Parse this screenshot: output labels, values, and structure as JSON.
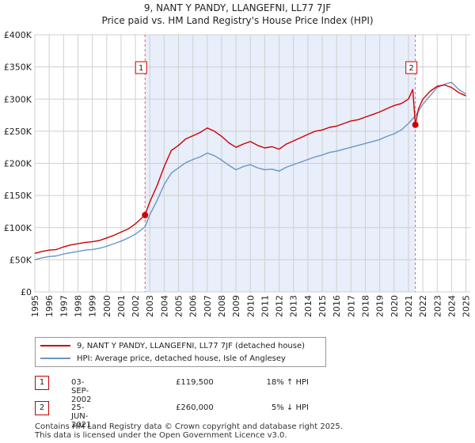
{
  "title": {
    "line1": "9, NANT Y PANDY, LLANGEFNI, LL77 7JF",
    "line2": "Price paid vs. HM Land Registry's House Price Index (HPI)"
  },
  "colors": {
    "property": "#cc0000",
    "hpi": "#6a96c8",
    "shade": "#e8eefa",
    "grid": "#cfcfcf",
    "vline": "#e06060"
  },
  "legend": {
    "property_label": "9, NANT Y PANDY, LLANGEFNI, LL77 7JF (detached house)",
    "hpi_label": "HPI: Average price, detached house, Isle of Anglesey"
  },
  "sales": [
    {
      "num": "1",
      "date": "03-SEP-2002",
      "price": "£119,500",
      "hpi": "18% ↑ HPI"
    },
    {
      "num": "2",
      "date": "25-JUN-2021",
      "price": "£260,000",
      "hpi": "5% ↓ HPI"
    }
  ],
  "footer": {
    "line1": "Contains HM Land Registry data © Crown copyright and database right 2025.",
    "line2": "This data is licensed under the Open Government Licence v3.0."
  },
  "chart_data": {
    "type": "line",
    "title": "9, NANT Y PANDY, LLANGEFNI, LL77 7JF",
    "xlabel": "",
    "ylabel": "",
    "xlim": [
      1995,
      2025.3
    ],
    "ylim": [
      0,
      400000
    ],
    "x_ticks": [
      1995,
      1996,
      1997,
      1998,
      1999,
      2000,
      2001,
      2002,
      2003,
      2004,
      2005,
      2006,
      2007,
      2008,
      2009,
      2010,
      2011,
      2012,
      2013,
      2014,
      2015,
      2016,
      2017,
      2018,
      2019,
      2020,
      2021,
      2022,
      2023,
      2024,
      2025
    ],
    "y_ticks": [
      {
        "value": 0,
        "label": "£0"
      },
      {
        "value": 50000,
        "label": "£50K"
      },
      {
        "value": 100000,
        "label": "£100K"
      },
      {
        "value": 150000,
        "label": "£150K"
      },
      {
        "value": 200000,
        "label": "£200K"
      },
      {
        "value": 250000,
        "label": "£250K"
      },
      {
        "value": 300000,
        "label": "£300K"
      },
      {
        "value": 350000,
        "label": "£350K"
      },
      {
        "value": 400000,
        "label": "£400K"
      }
    ],
    "grid": true,
    "shaded_ranges": [
      [
        2002.67,
        2021.48
      ]
    ],
    "markers": [
      {
        "label": "1",
        "x": 2002.67,
        "y": 119500
      },
      {
        "label": "2",
        "x": 2021.48,
        "y": 260000
      }
    ],
    "series": [
      {
        "name": "9, NANT Y PANDY, LLANGEFNI, LL77 7JF (detached house)",
        "x": [
          1995,
          1995.5,
          1996,
          1996.5,
          1997,
          1997.5,
          1998,
          1998.5,
          1999,
          1999.5,
          2000,
          2000.5,
          2001,
          2001.5,
          2002,
          2002.67,
          2003,
          2003.5,
          2004,
          2004.5,
          2005,
          2005.5,
          2006,
          2006.5,
          2007,
          2007.5,
          2008,
          2008.5,
          2009,
          2009.5,
          2010,
          2010.5,
          2011,
          2011.5,
          2012,
          2012.5,
          2013,
          2013.5,
          2014,
          2014.5,
          2015,
          2015.5,
          2016,
          2016.5,
          2017,
          2017.5,
          2018,
          2018.5,
          2019,
          2019.5,
          2020,
          2020.5,
          2021,
          2021.3,
          2021.48,
          2021.7,
          2022,
          2022.5,
          2023,
          2023.5,
          2024,
          2024.5,
          2025
        ],
        "values": [
          60000,
          63000,
          65000,
          66000,
          70000,
          73000,
          75000,
          77000,
          78000,
          80000,
          84000,
          88000,
          93000,
          98000,
          106000,
          119500,
          140000,
          165000,
          195000,
          220000,
          228000,
          238000,
          243000,
          248000,
          255000,
          250000,
          242000,
          232000,
          225000,
          230000,
          234000,
          228000,
          224000,
          226000,
          222000,
          230000,
          235000,
          240000,
          245000,
          250000,
          252000,
          256000,
          258000,
          262000,
          266000,
          268000,
          272000,
          276000,
          280000,
          285000,
          290000,
          293000,
          300000,
          315000,
          260000,
          285000,
          300000,
          312000,
          320000,
          322000,
          318000,
          310000,
          305000
        ]
      },
      {
        "name": "HPI: Average price, detached house, Isle of Anglesey",
        "x": [
          1995,
          1995.5,
          1996,
          1996.5,
          1997,
          1997.5,
          1998,
          1998.5,
          1999,
          1999.5,
          2000,
          2000.5,
          2001,
          2001.5,
          2002,
          2002.67,
          2003,
          2003.5,
          2004,
          2004.5,
          2005,
          2005.5,
          2006,
          2006.5,
          2007,
          2007.5,
          2008,
          2008.5,
          2009,
          2009.5,
          2010,
          2010.5,
          2011,
          2011.5,
          2012,
          2012.5,
          2013,
          2013.5,
          2014,
          2014.5,
          2015,
          2015.5,
          2016,
          2016.5,
          2017,
          2017.5,
          2018,
          2018.5,
          2019,
          2019.5,
          2020,
          2020.5,
          2021,
          2021.48,
          2021.8,
          2022,
          2022.5,
          2023,
          2023.5,
          2024,
          2024.5,
          2025
        ],
        "values": [
          50000,
          53000,
          55000,
          56000,
          59000,
          61000,
          63000,
          65000,
          66000,
          68000,
          71000,
          75000,
          79000,
          84000,
          90000,
          101000,
          120000,
          142000,
          167000,
          185000,
          193000,
          201000,
          206000,
          210000,
          216000,
          212000,
          205000,
          197000,
          190000,
          195000,
          198000,
          193000,
          190000,
          191000,
          188000,
          194000,
          198000,
          202000,
          206000,
          210000,
          213000,
          217000,
          219000,
          222000,
          225000,
          228000,
          231000,
          234000,
          237000,
          242000,
          246000,
          252000,
          262000,
          274000,
          285000,
          292000,
          305000,
          318000,
          323000,
          326000,
          315000,
          308000
        ]
      }
    ]
  }
}
